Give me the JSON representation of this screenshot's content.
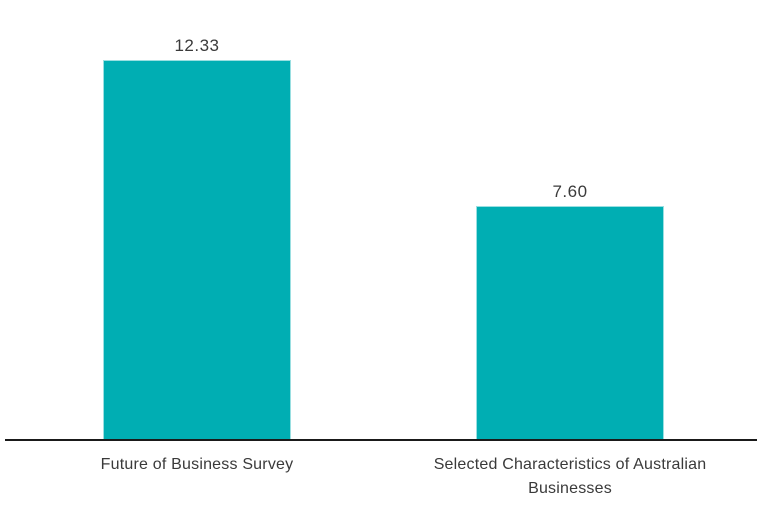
{
  "chart_data": {
    "type": "bar",
    "title": "",
    "xlabel": "",
    "ylabel": "",
    "categories": [
      "Future of Business Survey",
      "Selected Characteristics of Australian Businesses"
    ],
    "values": [
      12.33,
      7.6
    ],
    "value_labels": [
      "12.33",
      "7.60"
    ],
    "ylim": [
      0,
      12.33
    ],
    "grid": false,
    "legend": false,
    "colors": {
      "bar_fill": "#00AEB3",
      "bar_edge": "#9ADFE1",
      "axis_line": "#1A1A1A",
      "label_text": "#3A3A3A",
      "background": "#FFFFFF"
    }
  }
}
